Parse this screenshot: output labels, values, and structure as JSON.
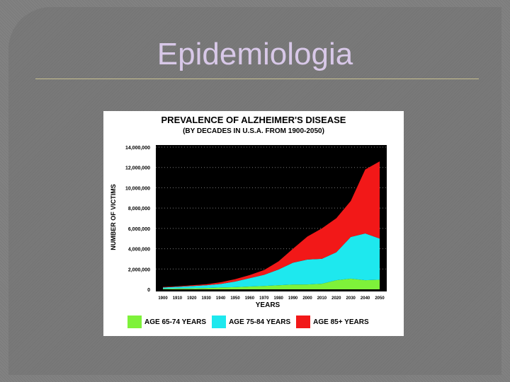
{
  "slide": {
    "title": "Epidemiologia"
  },
  "chart_data": {
    "type": "area",
    "stacked": true,
    "title": "PREVALENCE OF ALZHEIMER'S DISEASE",
    "subtitle": "(BY DECADES IN U.S.A. FROM 1900-2050)",
    "xlabel": "YEARS",
    "ylabel": "NUMBER OF VICTIMS",
    "x": [
      1900,
      1910,
      1920,
      1930,
      1940,
      1950,
      1960,
      1970,
      1980,
      1990,
      2000,
      2010,
      2020,
      2030,
      2040,
      2050
    ],
    "x_tick_labels": [
      "1900",
      "1910",
      "1920",
      "1930",
      "1940",
      "1950",
      "1960",
      "1970",
      "1980",
      "1990",
      "2000",
      "2010",
      "2020",
      "2030",
      "2040",
      "2050"
    ],
    "y_tick_labels": [
      "0",
      "2,000,000",
      "4,000,000",
      "6,000,000",
      "8,000,000",
      "10,000,000",
      "12,000,000",
      "14,000,000"
    ],
    "ylim": [
      0,
      14000000
    ],
    "plot_background": "#000000",
    "grid": "horizontal dotted",
    "legend_position": "bottom",
    "series": [
      {
        "name": "AGE 65-74 YEARS",
        "color": "#7ef23a",
        "values": [
          50000,
          80000,
          100000,
          130000,
          180000,
          220000,
          280000,
          330000,
          400000,
          470000,
          480000,
          550000,
          900000,
          1050000,
          900000,
          950000
        ]
      },
      {
        "name": "AGE 75-84 YEARS",
        "color": "#1ee8ee",
        "values": [
          130000,
          170000,
          220000,
          270000,
          350000,
          550000,
          820000,
          1100000,
          1550000,
          2150000,
          2450000,
          2450000,
          2750000,
          4100000,
          4600000,
          4050000
        ]
      },
      {
        "name": "AGE 85+ YEARS",
        "color": "#f21818",
        "values": [
          50000,
          50000,
          80000,
          100000,
          170000,
          230000,
          300000,
          470000,
          800000,
          1380000,
          2270000,
          3000000,
          3350000,
          3550000,
          6300000,
          7600000
        ]
      }
    ]
  }
}
